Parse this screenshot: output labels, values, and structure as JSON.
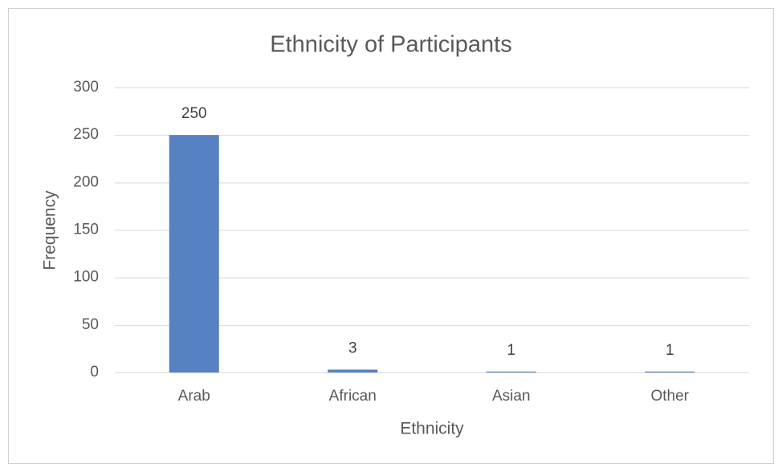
{
  "chart_data": {
    "type": "bar",
    "title": "Ethnicity of Participants",
    "x_label": "Ethnicity",
    "y_label": "Frequency",
    "categories": [
      "Arab",
      "African",
      "Asian",
      "Other"
    ],
    "values": [
      250,
      3,
      1,
      1
    ],
    "color": "#5681c2",
    "ylim": [
      0,
      300
    ],
    "yticks": [
      0,
      50,
      100,
      150,
      200,
      250,
      300
    ],
    "grid": true,
    "data_labels": true
  }
}
